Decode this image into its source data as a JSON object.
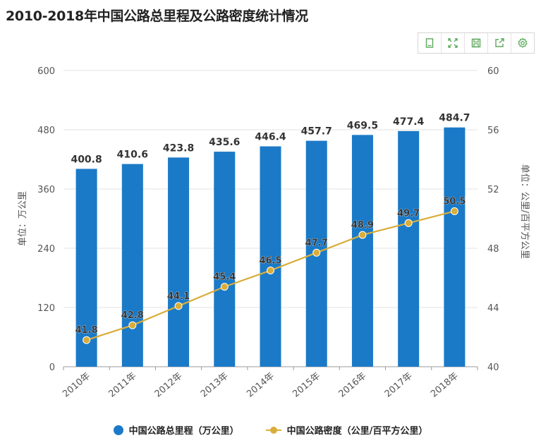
{
  "title": "2010-2018年中国公路总里程及公路密度统计情况",
  "toolbar": {
    "icons": [
      "data-view-icon",
      "fullscreen-icon",
      "save-icon",
      "share-icon",
      "settings-icon"
    ]
  },
  "legend": {
    "bar_label": "中国公路总里程（万公里）",
    "line_label": "中国公路密度（公里/百平方公里）"
  },
  "chart_data": {
    "type": "bar",
    "categories": [
      "2010年",
      "2011年",
      "2012年",
      "2013年",
      "2014年",
      "2015年",
      "2016年",
      "2017年",
      "2018年"
    ],
    "series": [
      {
        "name": "中国公路总里程（万公里）",
        "type": "bar",
        "axis": "left",
        "color": "#1b7ac7",
        "values": [
          400.8,
          410.6,
          423.8,
          435.6,
          446.4,
          457.7,
          469.5,
          477.4,
          484.7
        ]
      },
      {
        "name": "中国公路密度（公里/百平方公里）",
        "type": "line",
        "axis": "right",
        "color": "#d9ad3a",
        "values": [
          41.8,
          42.8,
          44.1,
          45.4,
          46.5,
          47.7,
          48.9,
          49.7,
          50.5
        ]
      }
    ],
    "ylabel": "单位：万公里",
    "ylabel_right": "单位：公里/百平方公里",
    "ylim": [
      0,
      600
    ],
    "yticks": [
      "0",
      "120",
      "240",
      "360",
      "480",
      "600"
    ],
    "ylim_right": [
      40,
      60
    ],
    "yticks_right": [
      "40",
      "44",
      "48",
      "52",
      "56",
      "60"
    ],
    "grid": true,
    "legend_position": "bottom"
  }
}
